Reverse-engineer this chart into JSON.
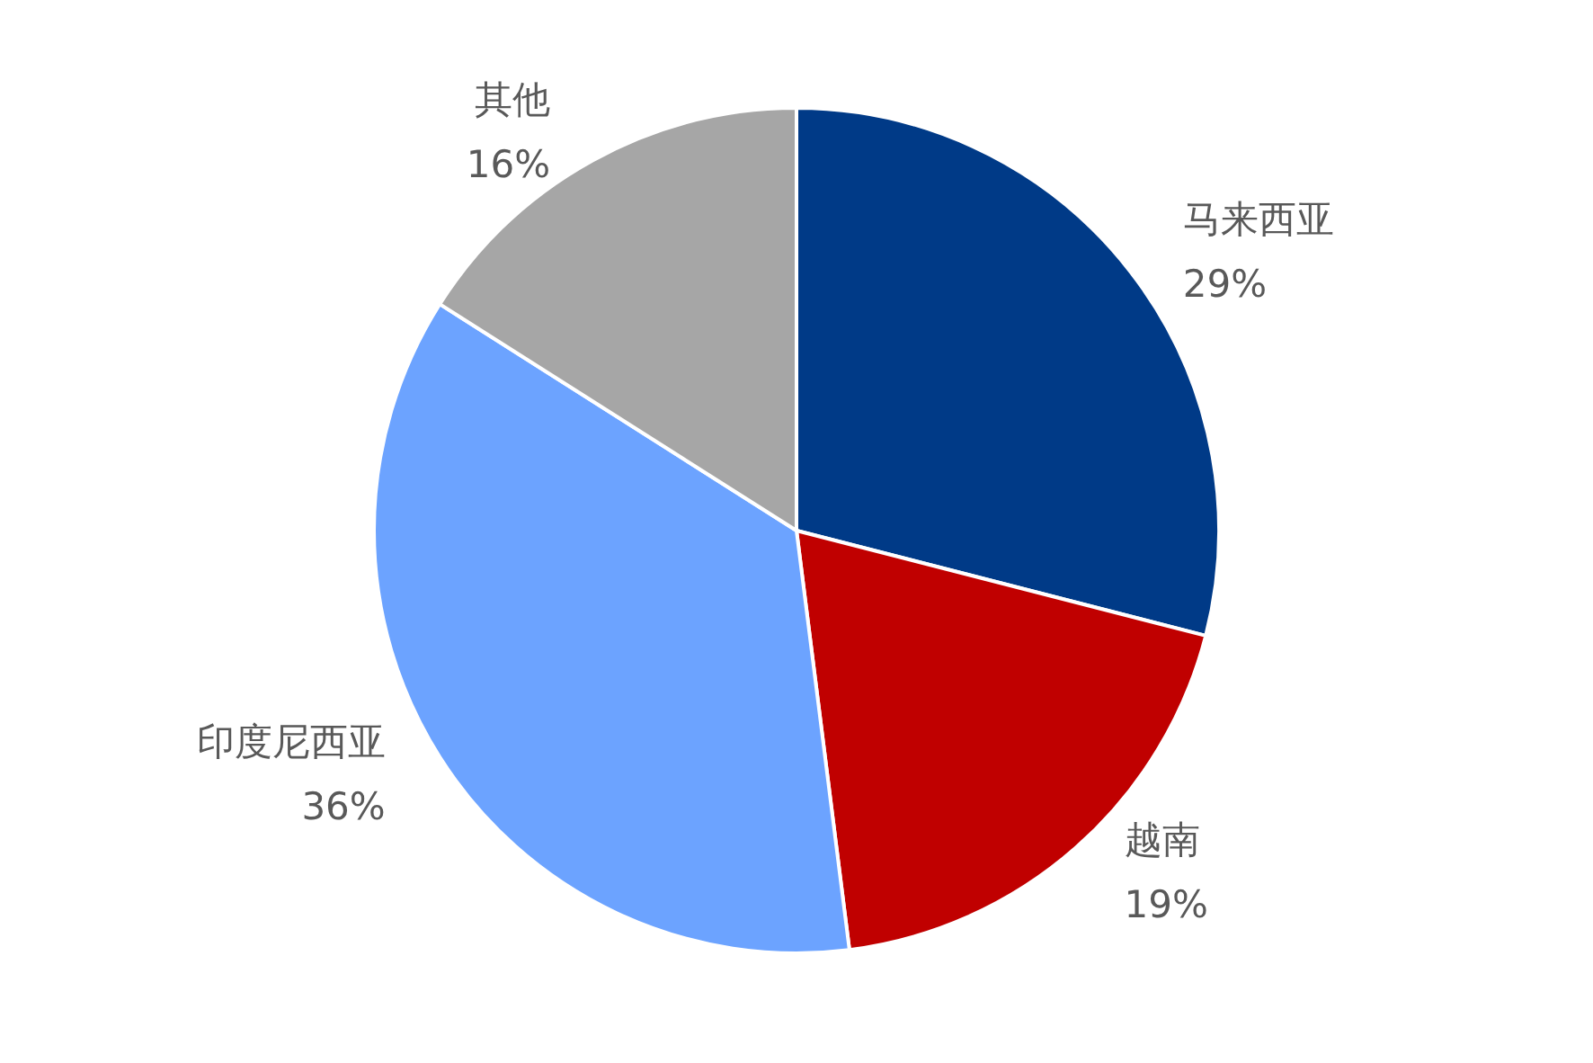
{
  "chart_data": {
    "type": "pie",
    "categories": [
      "马来西亚",
      "越南",
      "印度尼西亚",
      "其他"
    ],
    "values": [
      29,
      19,
      36,
      16
    ],
    "colors": [
      "#003a87",
      "#c00000",
      "#6ca3ff",
      "#a6a6a6"
    ],
    "value_labels": [
      "29%",
      "19%",
      "36%",
      "16%"
    ],
    "legend": false
  }
}
